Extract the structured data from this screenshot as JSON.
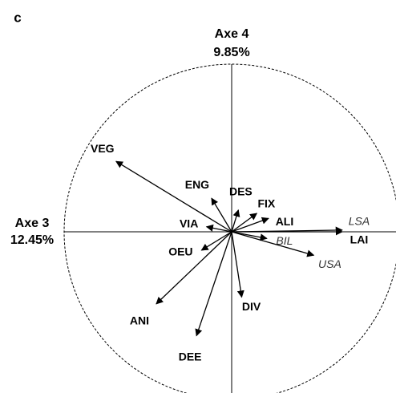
{
  "chart_data": {
    "type": "correlation-circle",
    "panel": "c",
    "x_axis_label": "Axe 3",
    "x_axis_percent": "12.45%",
    "y_axis_label": "Axe 4",
    "y_axis_percent": "9.85%",
    "xlim": [
      -1,
      1
    ],
    "ylim": [
      -1,
      1
    ],
    "color": "#000000",
    "labels": [
      "VEG",
      "ENG",
      "DES",
      "FIX",
      "ALI",
      "VIA",
      "LSA",
      "LAI",
      "BIL",
      "USA",
      "OEU",
      "ANI",
      "DEE",
      "DIV"
    ],
    "x": [
      -0.69,
      -0.12,
      0.04,
      0.15,
      0.22,
      -0.15,
      0.66,
      0.66,
      0.21,
      0.49,
      -0.18,
      -0.45,
      -0.21,
      0.06
    ],
    "y": [
      0.42,
      0.2,
      0.13,
      0.11,
      0.08,
      0.03,
      0.01,
      0,
      -0.04,
      -0.14,
      -0.11,
      -0.43,
      -0.62,
      -0.39
    ],
    "italic": [
      false,
      false,
      false,
      false,
      false,
      false,
      true,
      false,
      true,
      true,
      false,
      false,
      false,
      false
    ]
  }
}
